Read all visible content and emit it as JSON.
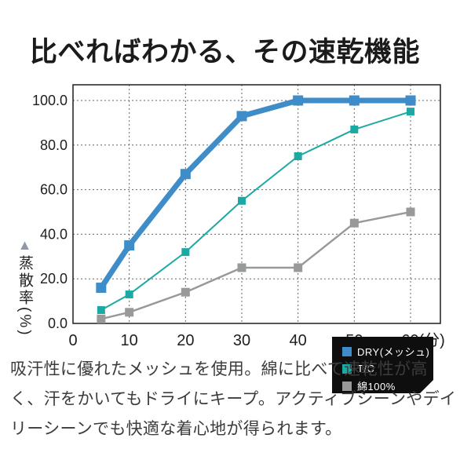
{
  "page": {
    "title": "比べればわかる、その速乾機能"
  },
  "description": {
    "lines": [
      "吸汗性に優れたメッシュを使用。綿に比べて速乾性が高",
      "く、汗をかいてもドライにキープ。アクティブシーンやデイ",
      "リーシーンでも快適な着心地が得られます。"
    ]
  },
  "chart_data": {
    "type": "line",
    "title": "",
    "xlabel": "(分)",
    "ylabel": "蒸散率(%)",
    "ylabel_marker": "▲",
    "x": [
      5,
      10,
      20,
      30,
      40,
      50,
      60
    ],
    "xlim": [
      0,
      65.3
    ],
    "ylim": [
      0,
      107
    ],
    "grid": "dotted",
    "xticks": [
      {
        "value": 0,
        "label": "0"
      },
      {
        "value": 10,
        "label": "10"
      },
      {
        "value": 20,
        "label": "20"
      },
      {
        "value": 30,
        "label": "30"
      },
      {
        "value": 40,
        "label": "40"
      },
      {
        "value": 50,
        "label": "50"
      },
      {
        "value": 60,
        "label": "60(分)"
      }
    ],
    "yticks": [
      {
        "value": 0,
        "label": "0.0"
      },
      {
        "value": 20,
        "label": "20.0"
      },
      {
        "value": 40,
        "label": "40.0"
      },
      {
        "value": 60,
        "label": "60.0"
      },
      {
        "value": 80,
        "label": "80.0"
      },
      {
        "value": 100,
        "label": "100.0"
      }
    ],
    "legend": {
      "position": "inside-bottom-right",
      "bg_color": "#0e0e0e",
      "text_color": "#ffffff"
    },
    "series": [
      {
        "name": "DRY(メッシュ)",
        "color": "#3e8cc8",
        "line_width": 7,
        "marker": "square",
        "marker_size": 13,
        "values": [
          16,
          35,
          67,
          93,
          100,
          100,
          100
        ]
      },
      {
        "name": "T/C",
        "color": "#1ca9a4",
        "line_width": 2,
        "marker": "square",
        "marker_size": 10,
        "values": [
          6,
          13,
          32,
          55,
          75,
          87,
          95
        ]
      },
      {
        "name": "綿100%",
        "color": "#97999b",
        "line_width": 2.5,
        "marker": "square",
        "marker_size": 11,
        "values": [
          2,
          5,
          14,
          25,
          25,
          45,
          50
        ]
      }
    ],
    "colors": {
      "frame": "#2b2b2b",
      "gridline": "#666666",
      "tick_text": "#1e1e1e",
      "axis_title_marker": "#8e9aa8"
    }
  }
}
